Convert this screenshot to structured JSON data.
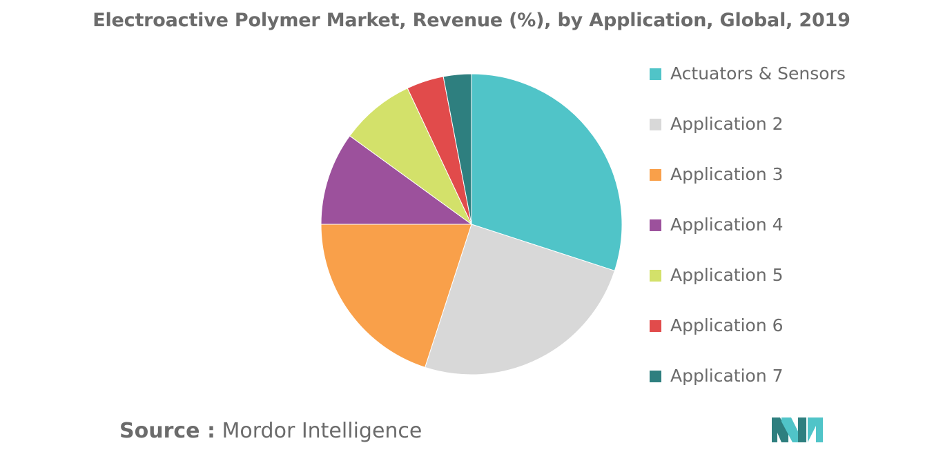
{
  "chart_data": {
    "type": "pie",
    "title": "Electroactive Polymer Market, Revenue (%), by Application, Global, 2019",
    "categories": [
      "Actuators & Sensors",
      "Application 2",
      "Application 3",
      "Application 4",
      "Application 5",
      "Application 6",
      "Application 7"
    ],
    "values": [
      30,
      25,
      20,
      10,
      8,
      4,
      3
    ],
    "unit": "%",
    "colors": [
      "#50c4c8",
      "#d8d8d8",
      "#f9a04a",
      "#9c519c",
      "#d3e16a",
      "#e14b4b",
      "#2e7f7f"
    ],
    "start_angle_deg": 0,
    "direction": "clockwise",
    "legend_position": "right"
  },
  "source": {
    "prefix": "Source :",
    "name": "Mordor Intelligence"
  },
  "logo": {
    "icon": "mordor-intelligence-logo-icon",
    "colors": [
      "#2e7f7f",
      "#50c4c8"
    ]
  }
}
